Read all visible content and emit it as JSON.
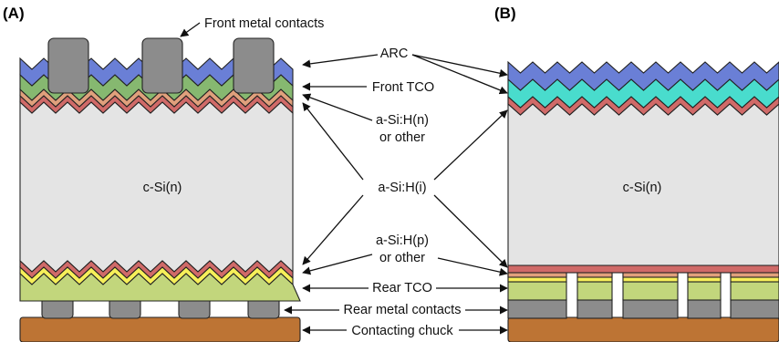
{
  "panels": {
    "a": "(A)",
    "b": "(B)"
  },
  "labels": {
    "front_metal_contacts": "Front metal contacts",
    "arc": "ARC",
    "front_tco": "Front TCO",
    "asih_n_line1": "a-Si:H(n)",
    "asih_n_line2": "or other",
    "c_si_a": "c-Si(n)",
    "c_si_b": "c-Si(n)",
    "asih_i": "a-Si:H(i)",
    "asih_p_line1": "a-Si:H(p)",
    "asih_p_line2": "or other",
    "rear_tco": "Rear TCO",
    "rear_metal_contacts": "Rear metal contacts",
    "contacting_chuck": "Contacting chuck"
  },
  "colors": {
    "arc": "#6a7fd6",
    "front_tco": "#86b870",
    "front_tco_b": "#49dccd",
    "asi_n": "#e0a07c",
    "asi_i": "#d06a68",
    "c_si": "#e4e4e4",
    "asi_p": "#f6ef59",
    "rear_tco": "#c2d67c",
    "metal": "#8c8c8c",
    "chuck": "#bd7434"
  }
}
